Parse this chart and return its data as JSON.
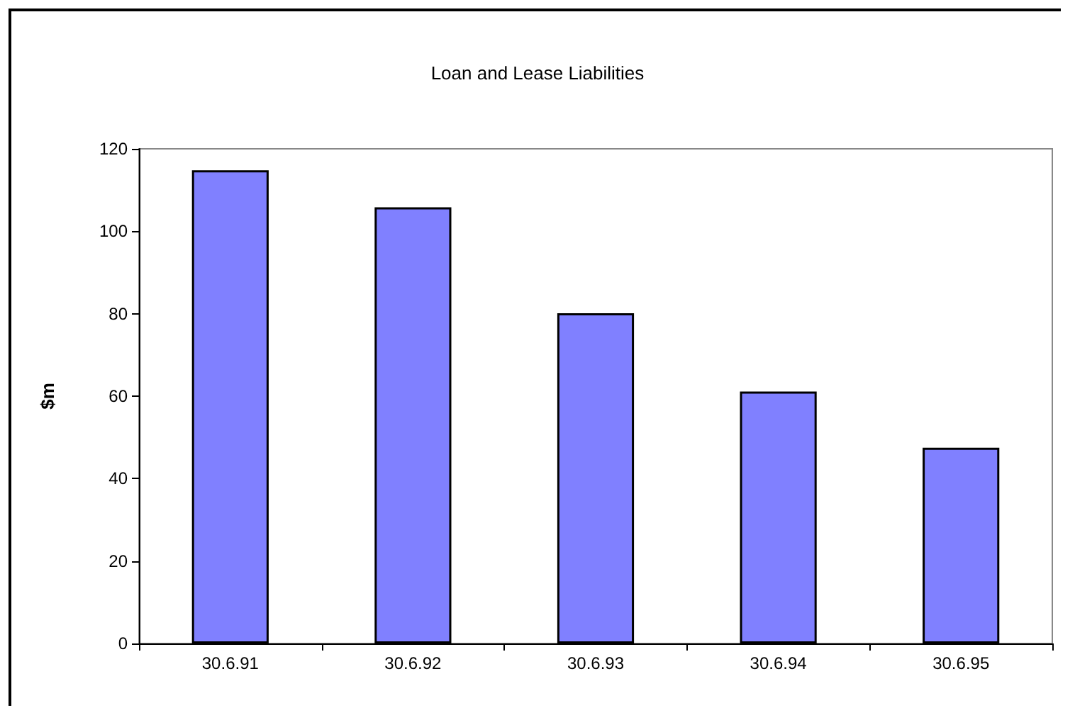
{
  "chart_data": {
    "type": "bar",
    "title": "Loan and Lease Liabilities",
    "ylabel": "$m",
    "categories": [
      "30.6.91",
      "30.6.92",
      "30.6.93",
      "30.6.94",
      "30.6.95"
    ],
    "values": [
      114.8,
      105.8,
      80.1,
      61.1,
      47.5
    ],
    "color": "#8080ff",
    "ylim": [
      0,
      120
    ],
    "yticks": [
      0,
      20,
      40,
      60,
      80,
      100,
      120
    ],
    "grid": false
  }
}
